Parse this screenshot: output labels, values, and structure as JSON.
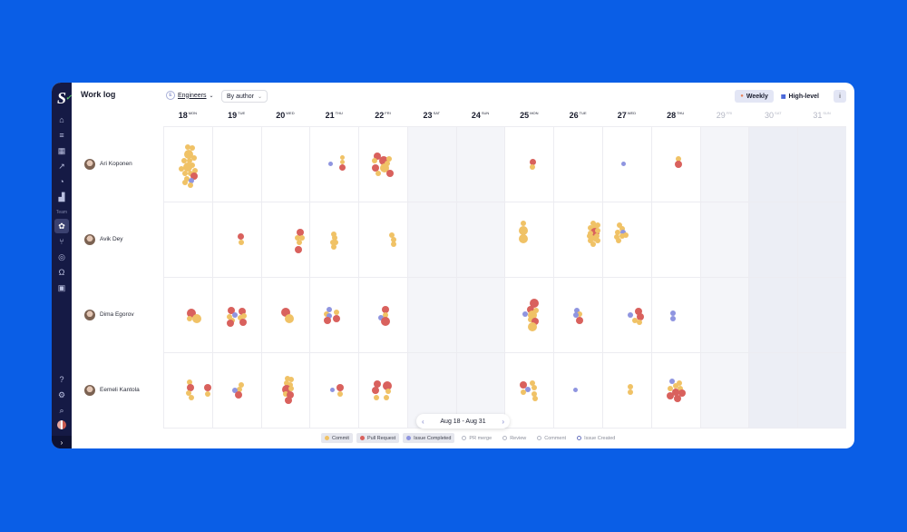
{
  "sidebar": {
    "logo": "S",
    "items": [
      {
        "name": "home-icon",
        "glyph": "⌂"
      },
      {
        "name": "list-icon",
        "glyph": "≡"
      },
      {
        "name": "grid-icon",
        "glyph": "▦"
      },
      {
        "name": "trend-icon",
        "glyph": "↗"
      },
      {
        "name": "chart-pie-icon",
        "glyph": "◔"
      },
      {
        "name": "bars-icon",
        "glyph": "▟"
      }
    ],
    "section_label": "Team",
    "team_items": [
      {
        "name": "worklog-icon",
        "glyph": "✿",
        "active": true
      },
      {
        "name": "pull-request-icon",
        "glyph": "⑂"
      },
      {
        "name": "target-icon",
        "glyph": "◎"
      },
      {
        "name": "headset-icon",
        "glyph": "Ω"
      },
      {
        "name": "chat-icon",
        "glyph": "▣"
      }
    ],
    "bottom": [
      {
        "name": "help-icon",
        "glyph": "?"
      },
      {
        "name": "settings-icon",
        "glyph": "⚙"
      },
      {
        "name": "search-icon",
        "glyph": "⌕"
      }
    ],
    "expand": "›"
  },
  "header": {
    "title": "Work log",
    "filter_label": "Engineers",
    "filter_icon": "E",
    "group_by": "By author",
    "view_weekly": "Weekly",
    "view_highlevel": "High-level",
    "info": "i"
  },
  "days": [
    {
      "num": "18",
      "dow": "MON"
    },
    {
      "num": "19",
      "dow": "TUE"
    },
    {
      "num": "20",
      "dow": "WED"
    },
    {
      "num": "21",
      "dow": "THU"
    },
    {
      "num": "22",
      "dow": "FRI"
    },
    {
      "num": "23",
      "dow": "SAT"
    },
    {
      "num": "24",
      "dow": "SUN"
    },
    {
      "num": "25",
      "dow": "MON"
    },
    {
      "num": "26",
      "dow": "TUE"
    },
    {
      "num": "27",
      "dow": "WED"
    },
    {
      "num": "28",
      "dow": "THU"
    },
    {
      "num": "29",
      "dow": "FRI"
    },
    {
      "num": "30",
      "dow": "SAT"
    },
    {
      "num": "31",
      "dow": "SUN"
    }
  ],
  "people": [
    {
      "name": "Ari Koponen"
    },
    {
      "name": "Avik Dey"
    },
    {
      "name": "Dima Egorov"
    },
    {
      "name": "Eemeli Kantola"
    }
  ],
  "pager": {
    "prev": "‹",
    "range": "Aug 18 - Aug 31",
    "next": "›"
  },
  "legend": [
    {
      "label": "Commit",
      "color": "#f0c266",
      "on": true
    },
    {
      "label": "Pull Request",
      "color": "#d9615d",
      "on": true
    },
    {
      "label": "Issue Completed",
      "color": "#8f95e0",
      "on": true
    },
    {
      "label": "PR merge",
      "color": "",
      "on": false
    },
    {
      "label": "Review",
      "color": "",
      "on": false
    },
    {
      "label": "Comment",
      "color": "",
      "on": false
    },
    {
      "label": "Issue Created",
      "color": "#6a74c0",
      "on": false
    }
  ],
  "colors": {
    "commit": "#f0c266",
    "pr": "#d9615d",
    "issue": "#8f95e0",
    "sidebar": "#151a45",
    "background": "#0a5ee6"
  },
  "activity": [
    [
      [
        [
          "c",
          26,
          22,
          3
        ],
        [
          "c",
          31,
          23,
          3
        ],
        [
          "c",
          27,
          30,
          5
        ],
        [
          "c",
          22,
          37,
          3
        ],
        [
          "c",
          28,
          37,
          3
        ],
        [
          "c",
          33,
          34,
          3
        ],
        [
          "c",
          26,
          44,
          5
        ],
        [
          "c",
          19,
          46,
          3
        ],
        [
          "c",
          31,
          42,
          3
        ],
        [
          "c",
          23,
          51,
          3
        ],
        [
          "c",
          29,
          51,
          3
        ],
        [
          "c",
          34,
          48,
          3
        ],
        [
          "c",
          25,
          57,
          3
        ],
        [
          "p",
          33,
          54,
          4
        ],
        [
          "i",
          30,
          59,
          3
        ],
        [
          "c",
          23,
          61,
          3
        ],
        [
          "c",
          29,
          64,
          3
        ]
      ],
      [],
      [],
      [
        [
          "i",
          22,
          40,
          2.5
        ],
        [
          "c",
          35,
          33,
          2.5
        ],
        [
          "c",
          35,
          38,
          2.5
        ],
        [
          "p",
          35,
          44,
          3.5
        ]
      ],
      [
        [
          "p",
          20,
          32,
          4
        ],
        [
          "c",
          17,
          37,
          3
        ],
        [
          "p",
          27,
          37,
          5
        ],
        [
          "c",
          33,
          35,
          3
        ],
        [
          "p",
          18,
          45,
          4
        ],
        [
          "c",
          31,
          40,
          3
        ],
        [
          "c",
          28,
          45,
          5
        ],
        [
          "p",
          34,
          51,
          4
        ],
        [
          "c",
          21,
          51,
          3
        ]
      ]
    ],
    [
      [],
      [
        [
          "p",
          31,
          37,
          3.5
        ],
        [
          "c",
          31,
          44,
          3
        ]
      ],
      [
        [
          "p",
          42,
          33,
          4
        ],
        [
          "c",
          39,
          39,
          3
        ],
        [
          "c",
          44,
          39,
          3
        ],
        [
          "c",
          41,
          44,
          3
        ],
        [
          "p",
          40,
          52,
          4
        ]
      ],
      [
        [
          "c",
          26,
          35,
          3
        ],
        [
          "c",
          27,
          39,
          3
        ],
        [
          "c",
          25,
          44,
          3
        ],
        [
          "c",
          28,
          44,
          3
        ],
        [
          "c",
          26,
          49,
          3
        ]
      ],
      [
        [
          "c",
          36,
          36,
          3
        ],
        [
          "c",
          38,
          41,
          3
        ],
        [
          "c",
          38,
          46,
          3
        ]
      ]
    ],
    [
      [
        [
          "p",
          30,
          39,
          5
        ],
        [
          "c",
          28,
          45,
          3
        ],
        [
          "c",
          36,
          45,
          5
        ]
      ],
      [
        [
          "p",
          20,
          36,
          4
        ],
        [
          "c",
          18,
          43,
          3
        ],
        [
          "i",
          24,
          41,
          3
        ],
        [
          "c",
          21,
          47,
          3
        ],
        [
          "p",
          19,
          50,
          4
        ],
        [
          "p",
          32,
          37,
          4
        ],
        [
          "c",
          30,
          44,
          3
        ],
        [
          "c",
          34,
          42,
          3
        ],
        [
          "p",
          33,
          49,
          4
        ]
      ],
      [
        [
          "p",
          26,
          38,
          5
        ],
        [
          "c",
          30,
          45,
          5
        ]
      ],
      [
        [
          "i",
          21,
          35,
          3
        ],
        [
          "c",
          18,
          40,
          3
        ],
        [
          "i",
          21,
          42,
          3
        ],
        [
          "p",
          19,
          47,
          4
        ],
        [
          "c",
          29,
          38,
          3
        ],
        [
          "p",
          29,
          45,
          4
        ]
      ],
      [
        [
          "p",
          29,
          35,
          4
        ],
        [
          "c",
          29,
          41,
          3
        ],
        [
          "i",
          24,
          44,
          3
        ],
        [
          "p",
          29,
          48,
          5
        ]
      ]
    ],
    [
      [
        [
          "c",
          28,
          32,
          3
        ],
        [
          "p",
          29,
          38,
          4
        ],
        [
          "c",
          27,
          44,
          3
        ],
        [
          "c",
          30,
          49,
          3
        ],
        [
          "p",
          48,
          38,
          4
        ],
        [
          "c",
          48,
          45,
          3
        ]
      ],
      [
        [
          "c",
          31,
          35,
          3
        ],
        [
          "c",
          29,
          40,
          3
        ],
        [
          "i",
          24,
          41,
          3
        ],
        [
          "p",
          28,
          46,
          4
        ]
      ],
      [
        [
          "c",
          28,
          28,
          3
        ],
        [
          "c",
          32,
          29,
          3
        ],
        [
          "c",
          27,
          33,
          3
        ],
        [
          "c",
          31,
          35,
          3
        ],
        [
          "p",
          27,
          40,
          5
        ],
        [
          "c",
          32,
          39,
          3
        ],
        [
          "c",
          26,
          45,
          3
        ],
        [
          "p",
          31,
          46,
          4
        ],
        [
          "p",
          29,
          52,
          4
        ]
      ],
      [
        [
          "i",
          24,
          40,
          2.5
        ],
        [
          "p",
          33,
          38,
          4
        ],
        [
          "c",
          33,
          45,
          3
        ]
      ],
      [
        [
          "p",
          20,
          34,
          4
        ],
        [
          "p",
          31,
          36,
          5
        ],
        [
          "p",
          18,
          41,
          4
        ],
        [
          "c",
          32,
          42,
          3
        ],
        [
          "c",
          19,
          49,
          3
        ],
        [
          "c",
          30,
          49,
          3
        ]
      ]
    ]
  ],
  "activity2": [
    [
      [
        [
          "p",
          30,
          38,
          3.5
        ],
        [
          "c",
          30,
          44,
          3
        ]
      ],
      [],
      [
        [
          "i",
          22,
          40,
          2.5
        ]
      ],
      [
        [
          "c",
          29,
          35,
          3
        ],
        [
          "p",
          29,
          41,
          4
        ]
      ]
    ],
    [
      [
        [
          "c",
          20,
          23,
          3
        ],
        [
          "c",
          20,
          31,
          5
        ],
        [
          "c",
          20,
          40,
          5
        ]
      ],
      [
        [
          "c",
          43,
          23,
          3
        ],
        [
          "c",
          40,
          28,
          3
        ],
        [
          "c",
          45,
          27,
          3
        ],
        [
          "c",
          48,
          25,
          3
        ],
        [
          "p",
          45,
          33,
          5
        ],
        [
          "c",
          40,
          34,
          3
        ],
        [
          "c",
          48,
          31,
          3
        ],
        [
          "c",
          42,
          39,
          3
        ],
        [
          "c",
          47,
          37,
          3
        ],
        [
          "c",
          39,
          37,
          3
        ],
        [
          "c",
          45,
          40,
          3
        ],
        [
          "c",
          40,
          42,
          3
        ],
        [
          "c",
          48,
          42,
          3
        ],
        [
          "c",
          43,
          46,
          3
        ]
      ],
      [
        [
          "c",
          18,
          25,
          3
        ],
        [
          "c",
          21,
          29,
          3
        ],
        [
          "c",
          16,
          33,
          3
        ],
        [
          "i",
          22,
          33,
          3
        ],
        [
          "c",
          21,
          37,
          3
        ],
        [
          "c",
          15,
          38,
          3
        ],
        [
          "c",
          25,
          36,
          3
        ],
        [
          "c",
          17,
          42,
          3
        ]
      ],
      []
    ],
    [
      [
        [
          "p",
          32,
          28,
          5
        ],
        [
          "p",
          28,
          35,
          4
        ],
        [
          "c",
          34,
          36,
          3
        ],
        [
          "i",
          22,
          40,
          3
        ],
        [
          "c",
          30,
          41,
          5
        ],
        [
          "c",
          28,
          46,
          3
        ],
        [
          "p",
          33,
          48,
          4
        ],
        [
          "c",
          30,
          54,
          5
        ]
      ],
      [
        [
          "i",
          25,
          36,
          3
        ],
        [
          "c",
          28,
          40,
          3
        ],
        [
          "i",
          24,
          41,
          3
        ],
        [
          "p",
          28,
          47,
          4
        ]
      ],
      [
        [
          "p",
          39,
          37,
          4
        ],
        [
          "i",
          30,
          41,
          3
        ],
        [
          "p",
          41,
          43,
          4
        ],
        [
          "c",
          35,
          47,
          3
        ],
        [
          "c",
          40,
          49,
          3
        ]
      ],
      [
        [
          "i",
          23,
          39,
          3
        ],
        [
          "i",
          23,
          45,
          3
        ]
      ]
    ],
    [
      [
        [
          "p",
          20,
          35,
          4
        ],
        [
          "c",
          30,
          33,
          3
        ],
        [
          "c",
          32,
          38,
          3
        ],
        [
          "i",
          25,
          40,
          3
        ],
        [
          "c",
          20,
          43,
          3
        ],
        [
          "c",
          32,
          45,
          3
        ],
        [
          "c",
          33,
          50,
          3
        ]
      ],
      [
        [
          "i",
          23,
          40,
          2.5
        ]
      ],
      [
        [
          "c",
          30,
          37,
          3
        ],
        [
          "c",
          30,
          43,
          3
        ]
      ],
      [
        [
          "i",
          22,
          31,
          3
        ],
        [
          "c",
          30,
          33,
          3
        ],
        [
          "c",
          26,
          36,
          3
        ],
        [
          "c",
          20,
          39,
          3
        ],
        [
          "c",
          31,
          39,
          3
        ],
        [
          "p",
          26,
          43,
          4
        ],
        [
          "p",
          33,
          44,
          4
        ],
        [
          "p",
          20,
          47,
          4
        ],
        [
          "p",
          28,
          50,
          4
        ]
      ]
    ]
  ]
}
